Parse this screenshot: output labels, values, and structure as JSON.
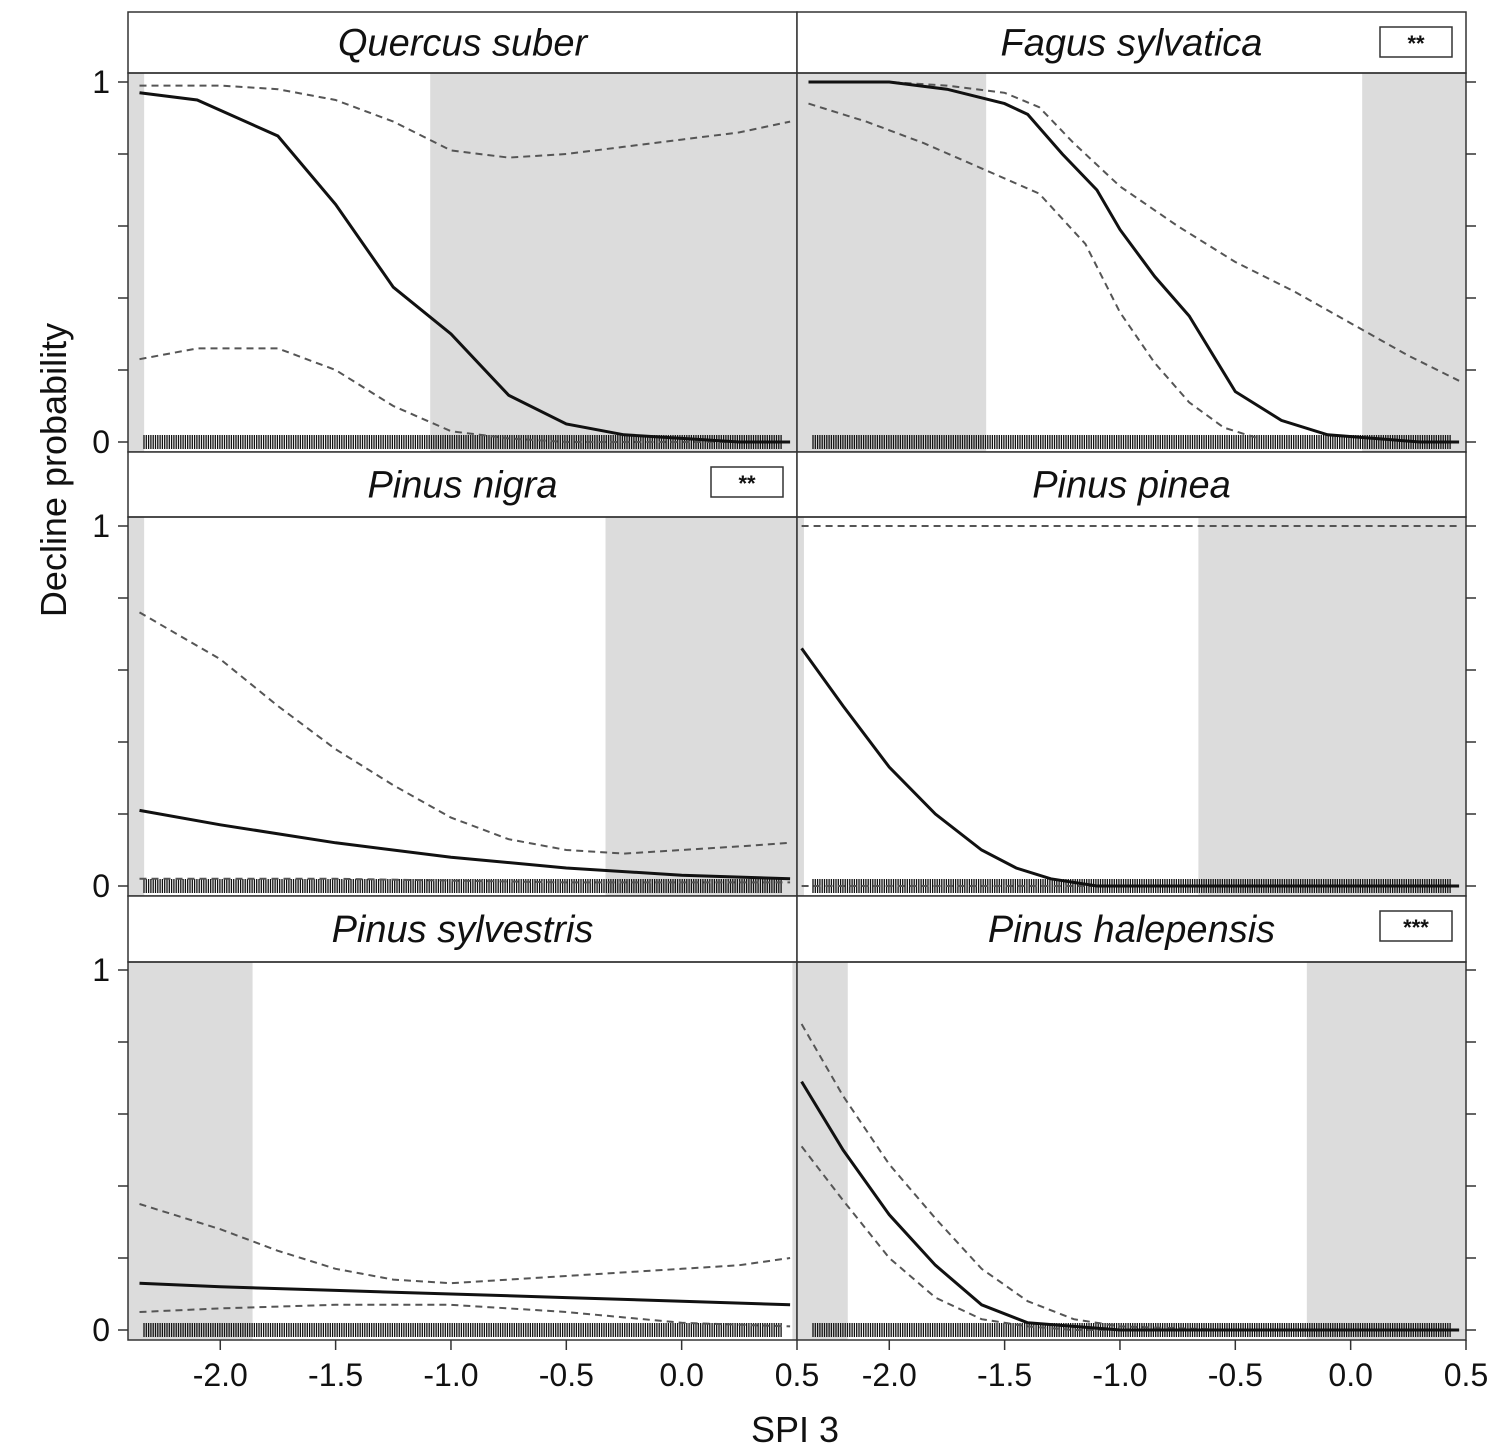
{
  "figure": {
    "xlabel": "SPI 3",
    "ylabel": "Decline probability"
  },
  "chart_data": [
    {
      "type": "line",
      "title": "Quercus suber",
      "badge": "",
      "xlim": [
        -2.4,
        0.5
      ],
      "ylim": [
        0,
        1
      ],
      "x_ticks": [
        "-2.0",
        "-1.5",
        "-1.0",
        "-0.5",
        "0.0",
        "0.5"
      ],
      "y_ticks": [
        "0",
        "1"
      ],
      "shaded_x": [
        [
          -2.4,
          -2.33
        ],
        [
          -1.09,
          0.5
        ]
      ],
      "fit": {
        "x": [
          -2.35,
          -2.1,
          -1.75,
          -1.5,
          -1.25,
          -1.0,
          -0.75,
          -0.5,
          -0.25,
          0.0,
          0.25,
          0.47
        ],
        "y": [
          0.97,
          0.95,
          0.85,
          0.66,
          0.43,
          0.3,
          0.13,
          0.05,
          0.02,
          0.01,
          0.0,
          0.0
        ]
      },
      "upper": {
        "x": [
          -2.35,
          -2.0,
          -1.75,
          -1.5,
          -1.25,
          -1.0,
          -0.75,
          -0.5,
          -0.25,
          0.0,
          0.25,
          0.47
        ],
        "y": [
          0.99,
          0.99,
          0.98,
          0.95,
          0.89,
          0.81,
          0.79,
          0.8,
          0.82,
          0.84,
          0.86,
          0.89
        ]
      },
      "lower": {
        "x": [
          -2.35,
          -2.1,
          -1.75,
          -1.5,
          -1.25,
          -1.0,
          -0.75,
          -0.5,
          -0.25,
          0.0,
          0.25,
          0.47
        ],
        "y": [
          0.23,
          0.26,
          0.26,
          0.2,
          0.1,
          0.03,
          0.01,
          0.0,
          0.0,
          0.0,
          0.0,
          0.0
        ]
      }
    },
    {
      "type": "line",
      "title": "Fagus sylvatica",
      "badge": "**",
      "xlim": [
        -2.4,
        0.5
      ],
      "ylim": [
        0,
        1
      ],
      "x_ticks": [
        "-2.0",
        "-1.5",
        "-1.0",
        "-0.5",
        "0.0",
        "0.5"
      ],
      "y_ticks": [
        "0",
        "1"
      ],
      "shaded_x": [
        [
          -2.4,
          -1.58
        ],
        [
          0.05,
          0.5
        ]
      ],
      "fit": {
        "x": [
          -2.35,
          -2.0,
          -1.75,
          -1.5,
          -1.4,
          -1.25,
          -1.1,
          -1.0,
          -0.85,
          -0.7,
          -0.5,
          -0.3,
          -0.1,
          0.1,
          0.3,
          0.47
        ],
        "y": [
          1.0,
          1.0,
          0.98,
          0.94,
          0.91,
          0.8,
          0.7,
          0.59,
          0.46,
          0.35,
          0.14,
          0.06,
          0.02,
          0.01,
          0.0,
          0.0
        ]
      },
      "upper": {
        "x": [
          -2.35,
          -2.0,
          -1.75,
          -1.5,
          -1.35,
          -1.2,
          -1.0,
          -0.75,
          -0.5,
          -0.25,
          0.0,
          0.25,
          0.47
        ],
        "y": [
          1.0,
          1.0,
          0.99,
          0.97,
          0.93,
          0.83,
          0.71,
          0.6,
          0.5,
          0.42,
          0.33,
          0.24,
          0.17
        ]
      },
      "lower": {
        "x": [
          -2.35,
          -2.1,
          -1.85,
          -1.6,
          -1.35,
          -1.15,
          -1.0,
          -0.85,
          -0.7,
          -0.55,
          -0.4
        ],
        "y": [
          0.94,
          0.89,
          0.83,
          0.76,
          0.69,
          0.55,
          0.36,
          0.22,
          0.11,
          0.04,
          0.01
        ]
      }
    },
    {
      "type": "line",
      "title": "Pinus nigra",
      "badge": "**",
      "xlim": [
        -2.4,
        0.5
      ],
      "ylim": [
        0,
        1
      ],
      "x_ticks": [
        "-2.0",
        "-1.5",
        "-1.0",
        "-0.5",
        "0.0",
        "0.5"
      ],
      "y_ticks": [
        "0",
        "1"
      ],
      "shaded_x": [
        [
          -2.4,
          -2.33
        ],
        [
          -0.33,
          0.5
        ]
      ],
      "fit": {
        "x": [
          -2.35,
          -2.0,
          -1.5,
          -1.0,
          -0.5,
          0.0,
          0.47
        ],
        "y": [
          0.21,
          0.17,
          0.12,
          0.08,
          0.05,
          0.03,
          0.02
        ]
      },
      "upper": {
        "x": [
          -2.35,
          -2.0,
          -1.75,
          -1.5,
          -1.25,
          -1.0,
          -0.75,
          -0.5,
          -0.25,
          0.0,
          0.25,
          0.47
        ],
        "y": [
          0.76,
          0.63,
          0.5,
          0.38,
          0.28,
          0.19,
          0.13,
          0.1,
          0.09,
          0.1,
          0.11,
          0.12
        ]
      },
      "lower": {
        "x": [
          -2.35,
          -1.5,
          -0.5,
          0.47
        ],
        "y": [
          0.02,
          0.02,
          0.01,
          0.01
        ]
      }
    },
    {
      "type": "line",
      "title": "Pinus pinea",
      "badge": "",
      "xlim": [
        -2.4,
        0.5
      ],
      "ylim": [
        0,
        1
      ],
      "x_ticks": [
        "-2.0",
        "-1.5",
        "-1.0",
        "-0.5",
        "0.0",
        "0.5"
      ],
      "y_ticks": [
        "0",
        "1"
      ],
      "shaded_x": [
        [
          -2.4,
          -2.37
        ],
        [
          -0.66,
          0.5
        ]
      ],
      "fit": {
        "x": [
          -2.38,
          -2.2,
          -2.0,
          -1.8,
          -1.6,
          -1.45,
          -1.3,
          -1.1,
          -0.9,
          -0.5,
          0.0,
          0.47
        ],
        "y": [
          0.66,
          0.5,
          0.33,
          0.2,
          0.1,
          0.05,
          0.02,
          0.0,
          0.0,
          0.0,
          0.0,
          0.0
        ]
      },
      "upper": {
        "x": [
          -2.38,
          0.0,
          0.47
        ],
        "y": [
          1.0,
          1.0,
          1.0
        ]
      },
      "lower": {
        "x": [
          -2.38,
          0.47
        ],
        "y": [
          0.0,
          0.0
        ]
      }
    },
    {
      "type": "line",
      "title": "Pinus sylvestris",
      "badge": "",
      "xlim": [
        -2.4,
        0.5
      ],
      "ylim": [
        0,
        1
      ],
      "x_ticks": [
        "-2.0",
        "-1.5",
        "-1.0",
        "-0.5",
        "0.0",
        "0.5"
      ],
      "y_ticks": [
        "0",
        "1"
      ],
      "shaded_x": [
        [
          -2.4,
          -1.86
        ],
        [
          0.48,
          0.5
        ]
      ],
      "fit": {
        "x": [
          -2.35,
          -2.0,
          -1.5,
          -1.0,
          -0.5,
          0.0,
          0.47
        ],
        "y": [
          0.13,
          0.12,
          0.11,
          0.1,
          0.09,
          0.08,
          0.07
        ]
      },
      "upper": {
        "x": [
          -2.35,
          -2.0,
          -1.75,
          -1.5,
          -1.25,
          -1.0,
          -0.75,
          -0.5,
          -0.25,
          0.0,
          0.25,
          0.47
        ],
        "y": [
          0.35,
          0.28,
          0.22,
          0.17,
          0.14,
          0.13,
          0.14,
          0.15,
          0.16,
          0.17,
          0.18,
          0.2
        ]
      },
      "lower": {
        "x": [
          -2.35,
          -2.0,
          -1.5,
          -1.0,
          -0.5,
          0.0,
          0.47
        ],
        "y": [
          0.05,
          0.06,
          0.07,
          0.07,
          0.05,
          0.02,
          0.01
        ]
      }
    },
    {
      "type": "line",
      "title": "Pinus halepensis",
      "badge": "***",
      "xlim": [
        -2.4,
        0.5
      ],
      "ylim": [
        0,
        1
      ],
      "x_ticks": [
        "-2.0",
        "-1.5",
        "-1.0",
        "-0.5",
        "0.0",
        "0.5"
      ],
      "y_ticks": [
        "0",
        "1"
      ],
      "shaded_x": [
        [
          -2.4,
          -2.18
        ],
        [
          -0.19,
          0.5
        ]
      ],
      "fit": {
        "x": [
          -2.38,
          -2.2,
          -2.0,
          -1.8,
          -1.6,
          -1.4,
          -1.2,
          -1.0,
          -0.5,
          0.0,
          0.47
        ],
        "y": [
          0.69,
          0.5,
          0.32,
          0.18,
          0.07,
          0.02,
          0.01,
          0.0,
          0.0,
          0.0,
          0.0
        ]
      },
      "upper": {
        "x": [
          -2.38,
          -2.2,
          -2.0,
          -1.8,
          -1.6,
          -1.4,
          -1.2,
          -1.0,
          -0.5,
          0.0,
          0.47
        ],
        "y": [
          0.85,
          0.65,
          0.46,
          0.31,
          0.17,
          0.08,
          0.03,
          0.01,
          0.0,
          0.0,
          0.0
        ]
      },
      "lower": {
        "x": [
          -2.38,
          -2.2,
          -2.0,
          -1.8,
          -1.6,
          -1.4,
          -1.2,
          -1.0,
          -0.5,
          0.0,
          0.47
        ],
        "y": [
          0.51,
          0.36,
          0.2,
          0.09,
          0.03,
          0.01,
          0.0,
          0.0,
          0.0,
          0.0,
          0.0
        ]
      }
    }
  ]
}
